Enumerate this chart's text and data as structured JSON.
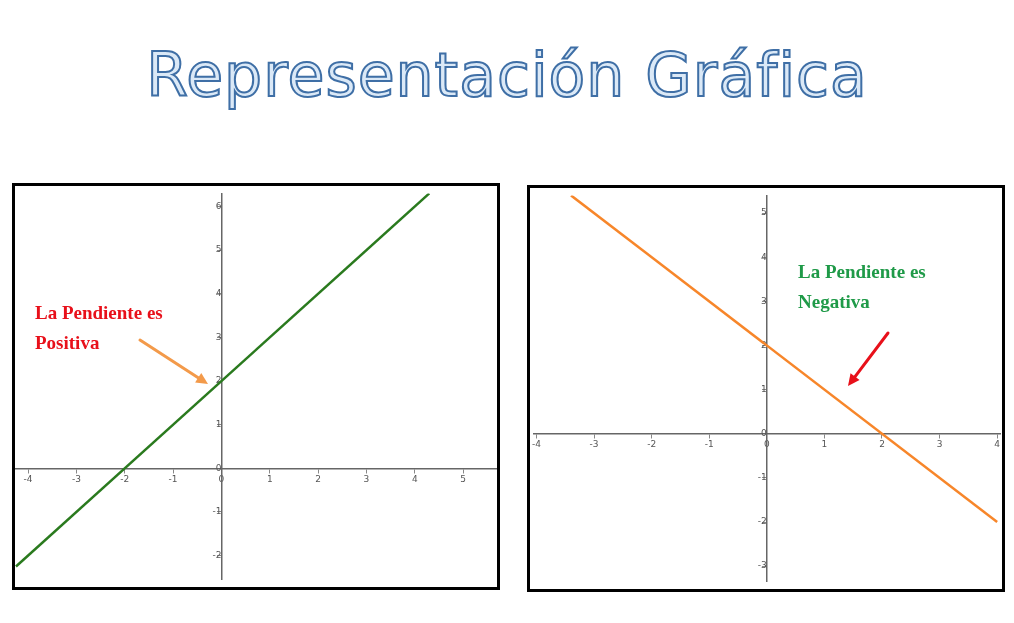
{
  "chart_data": [
    {
      "type": "line",
      "title": "Representación Gráfica",
      "x": [
        -4.25,
        4.3
      ],
      "series": [
        {
          "color": "#2a7a1e",
          "values": [
            -2.25,
            6.3
          ]
        }
      ],
      "xlim": [
        -4.27,
        5.7
      ],
      "ylim": [
        -2.55,
        6.3
      ],
      "xticks": [
        -4,
        -3,
        -2,
        -1,
        0,
        1,
        2,
        3,
        4,
        5
      ],
      "yticks": [
        -2,
        -1,
        0,
        1,
        2,
        3,
        4,
        5,
        6
      ],
      "annotations": [
        "La Pendiente es Positiva"
      ],
      "grid": false,
      "legend": false,
      "marker": "none"
    },
    {
      "type": "line",
      "x": [
        -3.4,
        4
      ],
      "series": [
        {
          "color": "#f7862a",
          "values": [
            5.4,
            -2
          ]
        }
      ],
      "xlim": [
        -4.05,
        4.05
      ],
      "ylim": [
        -3.35,
        5.4
      ],
      "xticks": [
        -4,
        -3,
        -2,
        -1,
        0,
        1,
        2,
        3,
        4
      ],
      "yticks": [
        -3,
        -2,
        -1,
        0,
        1,
        2,
        3,
        4,
        5
      ],
      "annotations": [
        "La Pendiente es Negativa"
      ],
      "grid": false,
      "legend": false,
      "marker": "none"
    }
  ]
}
